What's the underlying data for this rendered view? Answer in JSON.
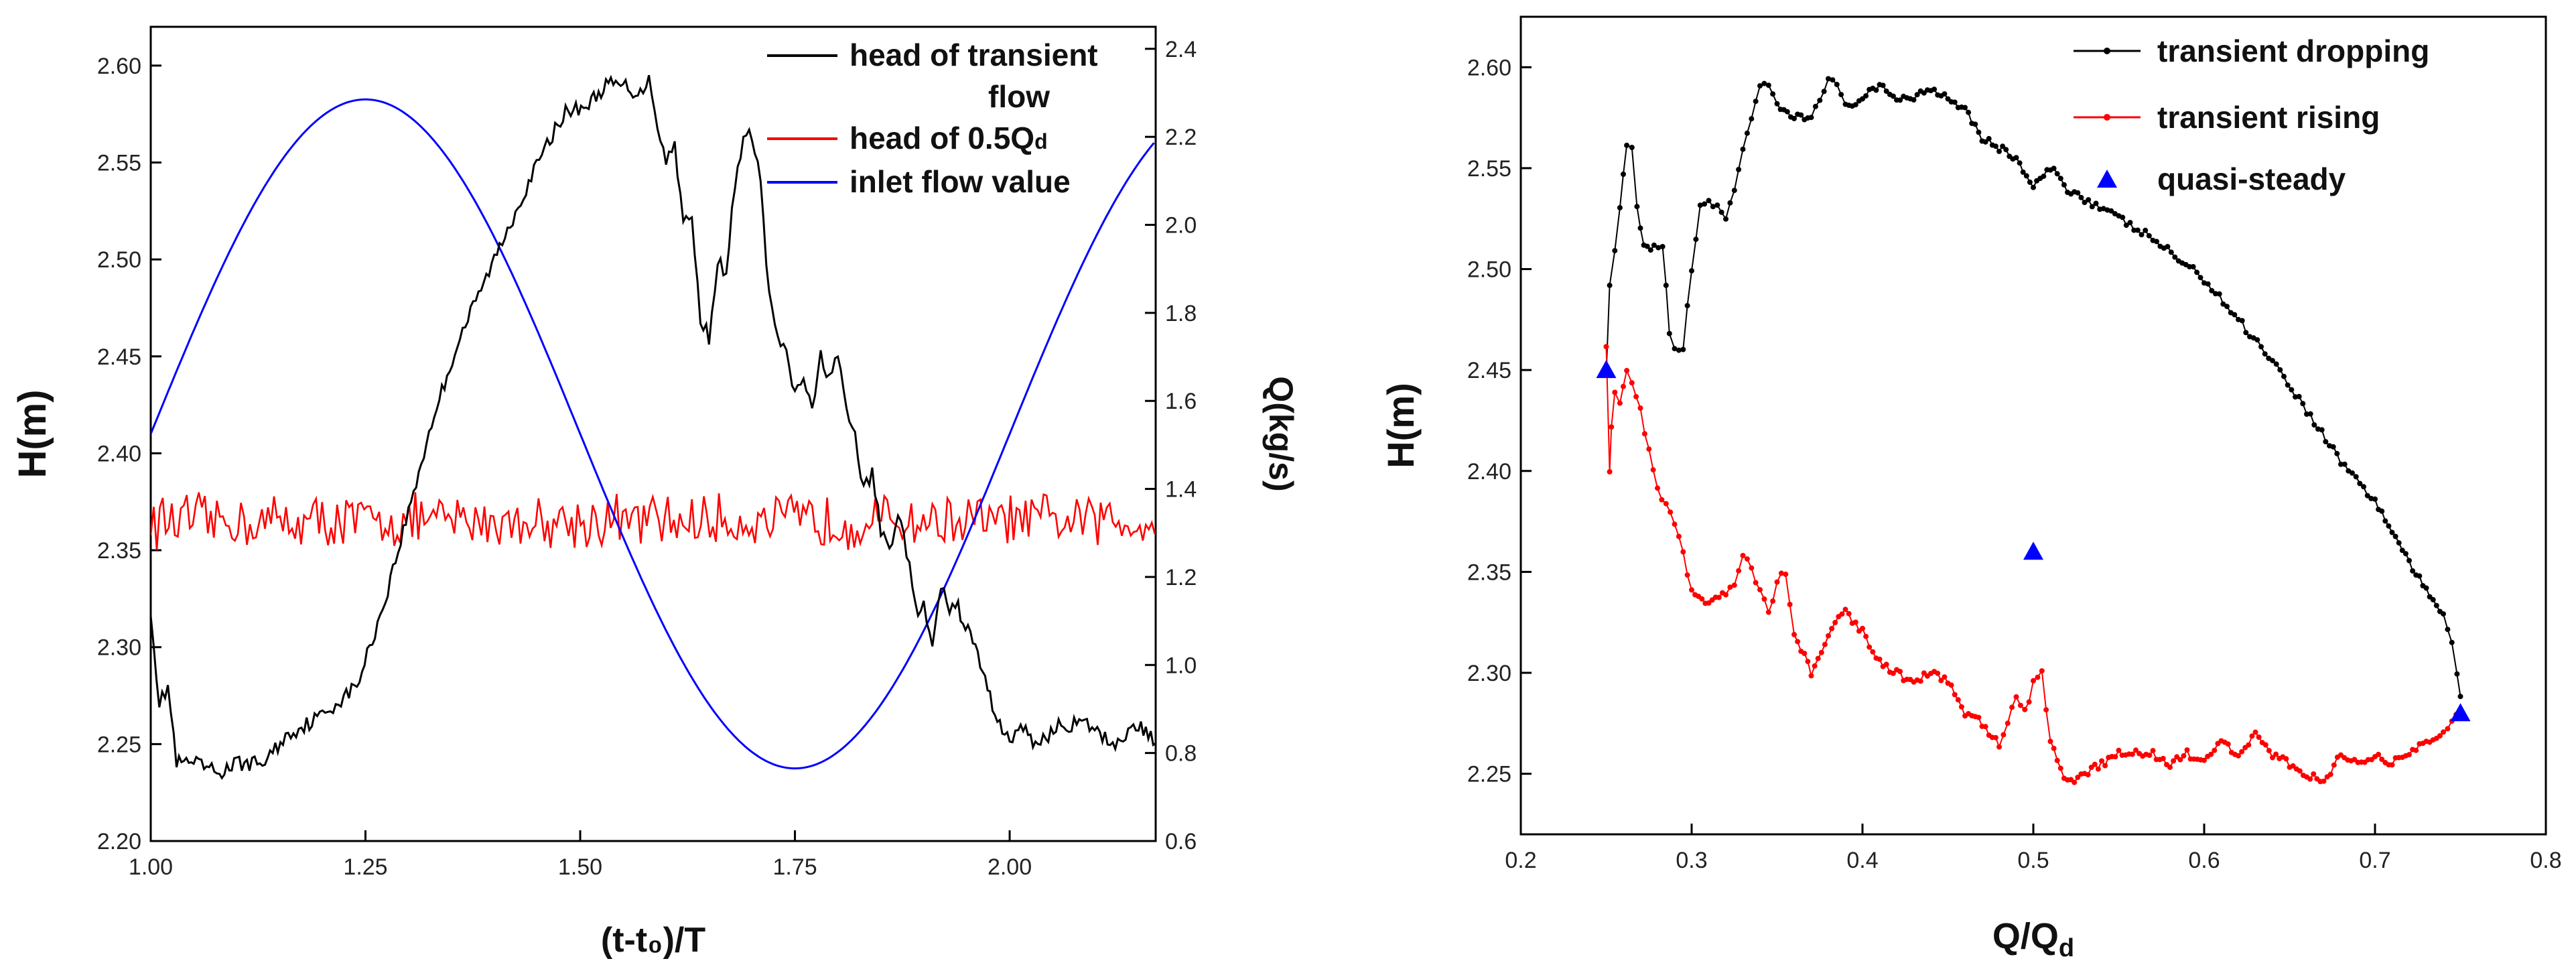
{
  "chart_data": [
    {
      "type": "line",
      "xlabel": "(t-t₀)/T",
      "ylabel": "H(m)",
      "y2label": "Q(kg/s)",
      "xlim": [
        1.0,
        2.17
      ],
      "ylim": [
        2.2,
        2.62
      ],
      "y2lim": [
        0.6,
        2.45
      ],
      "xticks": [
        "1.00",
        "1.25",
        "1.50",
        "1.75",
        "2.00"
      ],
      "yticks": [
        "2.20",
        "2.25",
        "2.30",
        "2.35",
        "2.40",
        "2.45",
        "2.50",
        "2.55",
        "2.60"
      ],
      "y2ticks": [
        "0.6",
        "0.8",
        "1.0",
        "1.2",
        "1.4",
        "1.6",
        "1.8",
        "2.0",
        "2.2",
        "2.4"
      ],
      "legend_position": "top-right",
      "series": [
        {
          "name": "head of transient flow",
          "axis": "left",
          "color": "#000000",
          "x": [
            1.0,
            1.01,
            1.02,
            1.03,
            1.05,
            1.08,
            1.1,
            1.13,
            1.16,
            1.2,
            1.24,
            1.27,
            1.3,
            1.33,
            1.36,
            1.4,
            1.44,
            1.48,
            1.51,
            1.53,
            1.55,
            1.57,
            1.58,
            1.59,
            1.6,
            1.61,
            1.62,
            1.63,
            1.64,
            1.65,
            1.66,
            1.67,
            1.68,
            1.69,
            1.7,
            1.71,
            1.72,
            1.73,
            1.74,
            1.75,
            1.76,
            1.77,
            1.78,
            1.79,
            1.8,
            1.81,
            1.82,
            1.83,
            1.84,
            1.85,
            1.86,
            1.87,
            1.88,
            1.89,
            1.9,
            1.91,
            1.92,
            1.93,
            1.94,
            1.96,
            1.98,
            2.0,
            2.01,
            2.03,
            2.06,
            2.09,
            2.12,
            2.15,
            2.17
          ],
          "y": [
            2.32,
            2.27,
            2.28,
            2.24,
            2.24,
            2.235,
            2.24,
            2.24,
            2.255,
            2.265,
            2.28,
            2.32,
            2.37,
            2.42,
            2.46,
            2.5,
            2.54,
            2.575,
            2.58,
            2.59,
            2.59,
            2.585,
            2.595,
            2.57,
            2.55,
            2.56,
            2.52,
            2.52,
            2.47,
            2.46,
            2.5,
            2.49,
            2.54,
            2.56,
            2.565,
            2.54,
            2.48,
            2.46,
            2.45,
            2.43,
            2.44,
            2.42,
            2.45,
            2.44,
            2.45,
            2.42,
            2.41,
            2.38,
            2.39,
            2.36,
            2.35,
            2.37,
            2.35,
            2.32,
            2.32,
            2.3,
            2.33,
            2.32,
            2.32,
            2.3,
            2.27,
            2.25,
            2.26,
            2.25,
            2.26,
            2.26,
            2.25,
            2.26,
            2.25
          ]
        },
        {
          "name": "head of 0.5Qd",
          "axis": "left",
          "color": "#ff0000",
          "mean": 2.365,
          "amplitude": 0.012
        },
        {
          "name": "inlet flow value",
          "axis": "right",
          "color": "#0000ff",
          "formula": "Q = 1.525 + 0.76*sin(2*pi*x)",
          "x": [
            1.0,
            1.25,
            1.5,
            1.75,
            2.0,
            2.17
          ],
          "y": [
            1.525,
            2.285,
            1.525,
            0.765,
            1.525,
            2.18
          ]
        }
      ]
    },
    {
      "type": "scatter",
      "xlabel": "Q/Q",
      "xlabel_sub": "d",
      "ylabel": "H(m)",
      "xlim": [
        0.2,
        0.8
      ],
      "ylim": [
        2.22,
        2.625
      ],
      "xticks": [
        "0.2",
        "0.3",
        "0.4",
        "0.5",
        "0.6",
        "0.7",
        "0.8"
      ],
      "yticks": [
        "2.25",
        "2.30",
        "2.35",
        "2.40",
        "2.45",
        "2.50",
        "2.55",
        "2.60"
      ],
      "legend_position": "top-right",
      "series": [
        {
          "name": "transient dropping",
          "color": "#000000",
          "x": [
            0.25,
            0.252,
            0.255,
            0.258,
            0.262,
            0.265,
            0.268,
            0.272,
            0.278,
            0.283,
            0.287,
            0.29,
            0.295,
            0.3,
            0.305,
            0.31,
            0.315,
            0.32,
            0.325,
            0.33,
            0.335,
            0.34,
            0.345,
            0.35,
            0.36,
            0.37,
            0.375,
            0.38,
            0.385,
            0.39,
            0.4,
            0.41,
            0.42,
            0.43,
            0.44,
            0.45,
            0.46,
            0.47,
            0.48,
            0.49,
            0.5,
            0.51,
            0.52,
            0.53,
            0.55,
            0.57,
            0.6,
            0.62,
            0.64,
            0.66,
            0.68,
            0.7,
            0.71,
            0.72,
            0.73,
            0.74,
            0.745,
            0.748,
            0.75
          ],
          "y": [
            2.45,
            2.49,
            2.51,
            2.53,
            2.56,
            2.56,
            2.53,
            2.51,
            2.51,
            2.51,
            2.47,
            2.46,
            2.46,
            2.5,
            2.53,
            2.535,
            2.53,
            2.525,
            2.54,
            2.56,
            2.575,
            2.59,
            2.59,
            2.58,
            2.575,
            2.575,
            2.585,
            2.595,
            2.59,
            2.58,
            2.585,
            2.59,
            2.585,
            2.585,
            2.59,
            2.585,
            2.58,
            2.565,
            2.56,
            2.555,
            2.54,
            2.55,
            2.54,
            2.535,
            2.525,
            2.515,
            2.495,
            2.475,
            2.455,
            2.43,
            2.405,
            2.385,
            2.37,
            2.355,
            2.34,
            2.33,
            2.315,
            2.3,
            2.29
          ]
        },
        {
          "name": "transient rising",
          "color": "#ff0000",
          "x": [
            0.75,
            0.745,
            0.74,
            0.73,
            0.72,
            0.71,
            0.7,
            0.69,
            0.68,
            0.67,
            0.66,
            0.65,
            0.64,
            0.63,
            0.62,
            0.61,
            0.6,
            0.59,
            0.58,
            0.57,
            0.56,
            0.55,
            0.54,
            0.53,
            0.52,
            0.51,
            0.505,
            0.5,
            0.495,
            0.49,
            0.485,
            0.48,
            0.47,
            0.46,
            0.45,
            0.44,
            0.43,
            0.42,
            0.41,
            0.4,
            0.39,
            0.38,
            0.37,
            0.36,
            0.355,
            0.35,
            0.345,
            0.34,
            0.335,
            0.33,
            0.325,
            0.32,
            0.31,
            0.3,
            0.295,
            0.29,
            0.285,
            0.28,
            0.275,
            0.27,
            0.265,
            0.262,
            0.258,
            0.255,
            0.253,
            0.252,
            0.25
          ],
          "y": [
            2.28,
            2.275,
            2.27,
            2.265,
            2.26,
            2.255,
            2.26,
            2.255,
            2.26,
            2.245,
            2.25,
            2.255,
            2.26,
            2.27,
            2.26,
            2.265,
            2.255,
            2.26,
            2.255,
            2.26,
            2.26,
            2.26,
            2.255,
            2.25,
            2.245,
            2.265,
            2.3,
            2.295,
            2.28,
            2.29,
            2.275,
            2.265,
            2.275,
            2.28,
            2.295,
            2.3,
            2.295,
            2.3,
            2.305,
            2.32,
            2.33,
            2.32,
            2.3,
            2.32,
            2.35,
            2.345,
            2.33,
            2.34,
            2.35,
            2.36,
            2.345,
            2.34,
            2.335,
            2.34,
            2.36,
            2.375,
            2.385,
            2.39,
            2.41,
            2.43,
            2.445,
            2.45,
            2.435,
            2.44,
            2.42,
            2.4,
            2.46
          ]
        },
        {
          "name": "quasi-steady",
          "color": "#0000ff",
          "marker": "triangle",
          "x": [
            0.25,
            0.5,
            0.75
          ],
          "y": [
            2.45,
            2.36,
            2.28
          ]
        }
      ]
    }
  ]
}
